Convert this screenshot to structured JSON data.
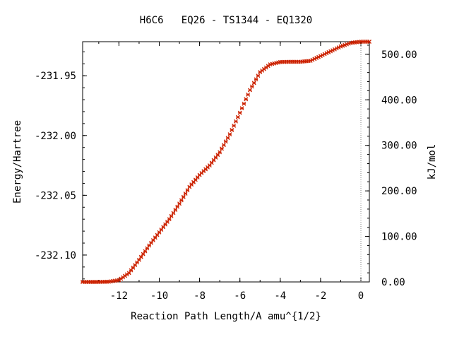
{
  "chart_data": {
    "type": "scatter",
    "title": "H6C6   EQ26 - TS1344 - EQ1320",
    "xlabel": "Reaction Path Length/A amu^{1/2}",
    "ylabel": "Energy/Hartree",
    "y2label": "kJ/mol",
    "xlim": [
      -13.8,
      0.42
    ],
    "ylim": [
      -232.1225,
      -231.9215
    ],
    "y2lim": [
      0.0,
      527.7
    ],
    "x_ticks": [
      -12,
      -10,
      -8,
      -6,
      -4,
      -2,
      0
    ],
    "x_tick_labels": [
      "-12",
      "-10",
      "-8",
      "-6",
      "-4",
      "-2",
      "0"
    ],
    "y_ticks": [
      -231.95,
      -232.0,
      -232.05,
      -232.1
    ],
    "y_tick_labels": [
      "-231.95",
      "-232.00",
      "-232.05",
      "-232.10"
    ],
    "y2_ticks": [
      0,
      100,
      200,
      300,
      400,
      500
    ],
    "y2_tick_labels": [
      "0.00",
      "100.00",
      "200.00",
      "300.00",
      "400.00",
      "500.00"
    ],
    "grid": false,
    "ts_marker_x": 0,
    "marker_color": "#cc2200",
    "series": [
      {
        "x": [
          -13.8,
          -13.0,
          -12.5,
          -12.0,
          -11.5,
          -11.0,
          -10.5,
          -10.0,
          -9.5,
          -9.0,
          -8.5,
          -8.0,
          -7.5,
          -7.0,
          -6.5,
          -6.0,
          -5.5,
          -5.0,
          -4.5,
          -4.0,
          -3.5,
          -3.0,
          -2.5,
          -2.0,
          -1.5,
          -1.0,
          -0.5,
          0.0,
          0.42
        ],
        "y": [
          -232.1225,
          -232.1225,
          -232.1223,
          -232.121,
          -232.115,
          -232.104,
          -232.092,
          -232.081,
          -232.07,
          -232.057,
          -232.043,
          -232.033,
          -232.025,
          -232.014,
          -231.999,
          -231.981,
          -231.962,
          -231.947,
          -231.9405,
          -231.9385,
          -231.9383,
          -231.9383,
          -231.9375,
          -231.9335,
          -231.9295,
          -231.9255,
          -231.9225,
          -231.9215,
          -231.9215
        ]
      }
    ]
  }
}
